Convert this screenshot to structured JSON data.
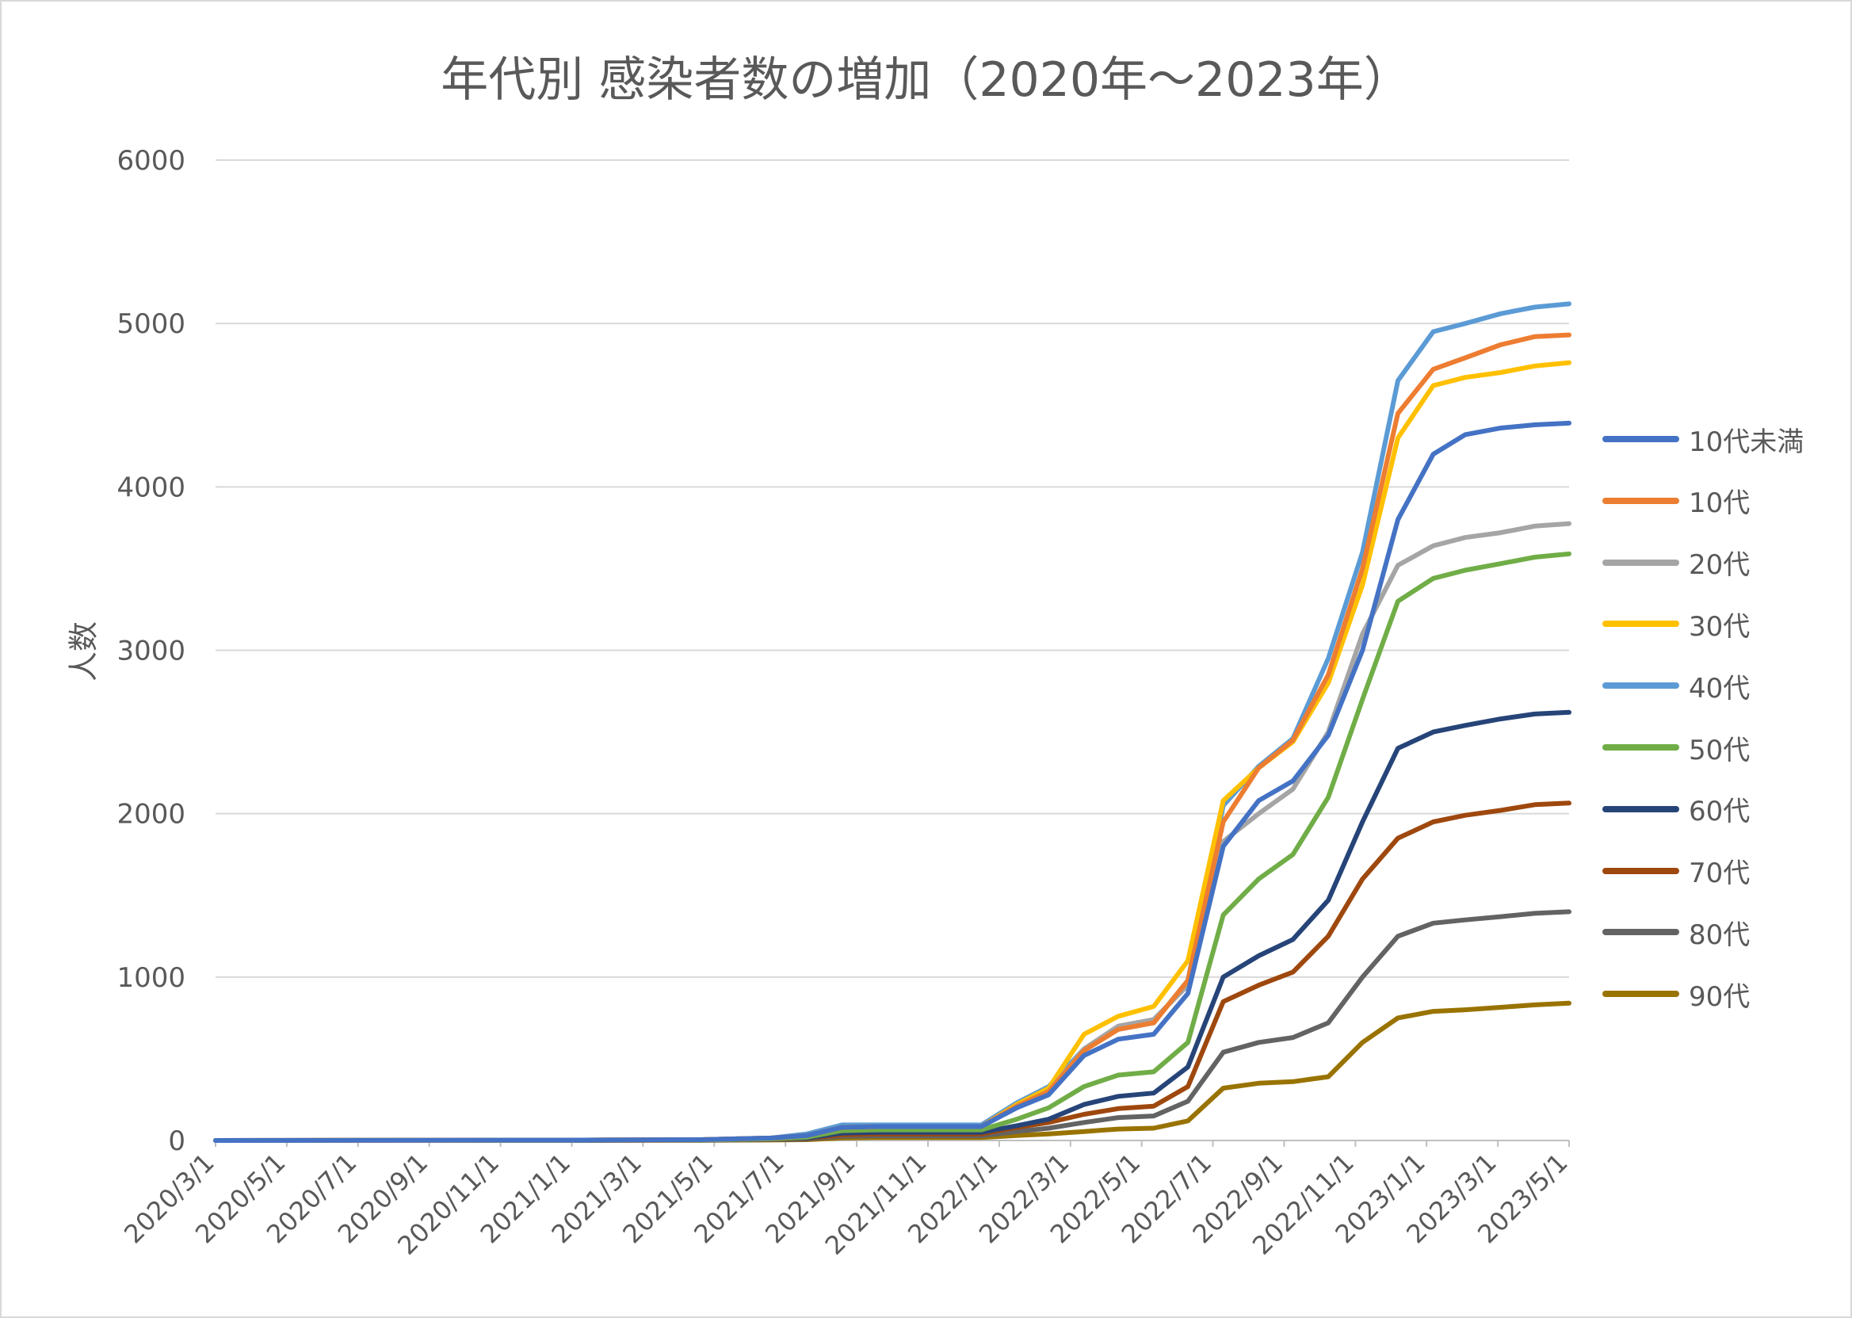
{
  "chart_data": {
    "type": "line",
    "title": "年代別 感染者数の増加（2020年～2023年）",
    "xlabel": "",
    "ylabel": "人数",
    "ylim": [
      0,
      6000
    ],
    "yticks": [
      "0",
      "1000",
      "2000",
      "3000",
      "4000",
      "5000",
      "6000"
    ],
    "xticks": [
      "2020/3/1",
      "2020/5/1",
      "2020/7/1",
      "2020/9/1",
      "2020/11/1",
      "2021/1/1",
      "2021/3/1",
      "2021/5/1",
      "2021/7/1",
      "2021/9/1",
      "2021/11/1",
      "2022/1/1",
      "2022/3/1",
      "2022/5/1",
      "2022/7/1",
      "2022/9/1",
      "2022/11/1",
      "2023/1/1",
      "2023/3/1",
      "2023/5/1"
    ],
    "grid": true,
    "legend_position": "right",
    "x": [
      "2020/3/1",
      "2021/1/1",
      "2021/5/1",
      "2021/7/1",
      "2021/8/1",
      "2021/9/1",
      "2021/10/1",
      "2021/11/1",
      "2021/12/1",
      "2022/1/1",
      "2022/2/1",
      "2022/3/1",
      "2022/4/1",
      "2022/5/1",
      "2022/6/1",
      "2022/7/1",
      "2022/8/1",
      "2022/9/1",
      "2022/10/1",
      "2022/11/1",
      "2022/12/1",
      "2023/1/1",
      "2023/2/1",
      "2023/3/1",
      "2023/4/1",
      "2023/5/1",
      "2023/5/31"
    ],
    "series": [
      {
        "name": "10代未満",
        "color": "#4472c4",
        "values": [
          0,
          2,
          5,
          15,
          30,
          80,
          85,
          85,
          85,
          85,
          200,
          280,
          520,
          620,
          650,
          900,
          1800,
          2080,
          2200,
          2480,
          3000,
          3800,
          4200,
          4320,
          4360,
          4380,
          4390
        ]
      },
      {
        "name": "10代",
        "color": "#ed7d31",
        "values": [
          0,
          2,
          5,
          15,
          30,
          80,
          85,
          85,
          85,
          85,
          210,
          300,
          550,
          680,
          720,
          980,
          1950,
          2280,
          2450,
          2850,
          3500,
          4450,
          4720,
          4790,
          4870,
          4920,
          4930
        ]
      },
      {
        "name": "20代",
        "color": "#a5a5a5",
        "values": [
          0,
          2,
          5,
          15,
          30,
          80,
          85,
          85,
          85,
          85,
          210,
          300,
          560,
          700,
          740,
          950,
          1830,
          2000,
          2150,
          2500,
          3100,
          3520,
          3640,
          3690,
          3720,
          3760,
          3775
        ]
      },
      {
        "name": "30代",
        "color": "#ffc000",
        "values": [
          0,
          2,
          5,
          15,
          30,
          80,
          85,
          85,
          85,
          85,
          220,
          320,
          650,
          760,
          820,
          1100,
          2080,
          2280,
          2440,
          2800,
          3400,
          4300,
          4620,
          4670,
          4700,
          4740,
          4760
        ]
      },
      {
        "name": "40代",
        "color": "#5b9bd5",
        "values": [
          0,
          2,
          5,
          15,
          40,
          95,
          95,
          95,
          95,
          95,
          230,
          330,
          560,
          680,
          720,
          980,
          2050,
          2290,
          2460,
          2950,
          3600,
          4650,
          4950,
          5000,
          5060,
          5100,
          5120
        ]
      },
      {
        "name": "50代",
        "color": "#70ad47",
        "values": [
          0,
          1,
          3,
          10,
          20,
          60,
          65,
          65,
          65,
          65,
          130,
          200,
          330,
          400,
          420,
          600,
          1380,
          1600,
          1750,
          2100,
          2700,
          3300,
          3440,
          3490,
          3530,
          3570,
          3590
        ]
      },
      {
        "name": "60代",
        "color": "#264478",
        "values": [
          0,
          1,
          3,
          10,
          15,
          45,
          50,
          50,
          50,
          50,
          90,
          130,
          220,
          270,
          290,
          450,
          1000,
          1130,
          1230,
          1470,
          1950,
          2400,
          2500,
          2540,
          2580,
          2610,
          2620
        ]
      },
      {
        "name": "70代",
        "color": "#9e480e",
        "values": [
          0,
          1,
          2,
          8,
          12,
          35,
          40,
          40,
          40,
          40,
          80,
          110,
          160,
          195,
          210,
          330,
          850,
          950,
          1030,
          1250,
          1600,
          1850,
          1950,
          1990,
          2020,
          2055,
          2065
        ]
      },
      {
        "name": "80代",
        "color": "#636363",
        "values": [
          0,
          1,
          2,
          5,
          8,
          25,
          28,
          28,
          28,
          28,
          55,
          75,
          110,
          140,
          150,
          240,
          540,
          600,
          630,
          720,
          1000,
          1250,
          1330,
          1350,
          1370,
          1390,
          1400
        ]
      },
      {
        "name": "90代",
        "color": "#997300",
        "values": [
          0,
          1,
          1,
          3,
          5,
          15,
          18,
          18,
          18,
          18,
          30,
          40,
          55,
          70,
          75,
          120,
          320,
          350,
          360,
          390,
          600,
          750,
          790,
          800,
          815,
          830,
          840
        ]
      }
    ]
  }
}
